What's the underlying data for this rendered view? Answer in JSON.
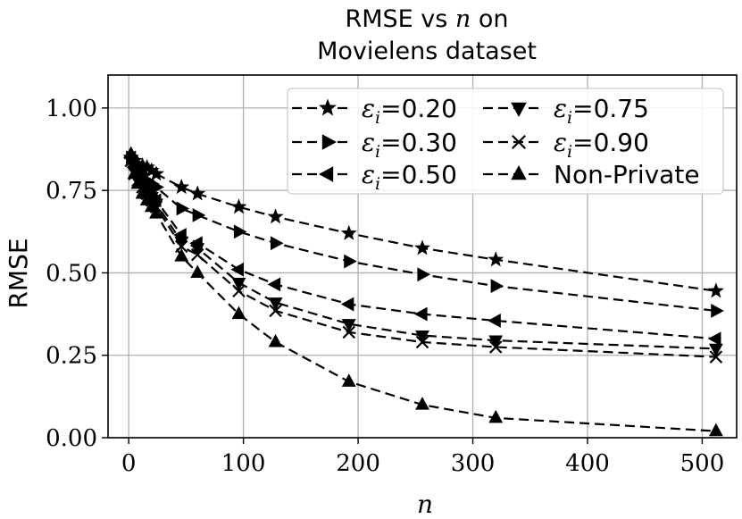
{
  "chart_data": {
    "type": "line",
    "title_line1_prefix": "RMSE vs ",
    "title_var": "n",
    "title_line1_suffix": " on",
    "title_line2": "Movielens dataset",
    "xlabel": "n",
    "ylabel": "RMSE",
    "xlim": [
      -18,
      530
    ],
    "ylim": [
      0.0,
      1.1
    ],
    "xticks": [
      0,
      100,
      200,
      300,
      400,
      500
    ],
    "yticks": [
      0.0,
      0.25,
      0.5,
      0.75,
      1.0
    ],
    "ytick_labels": [
      "0.00",
      "0.25",
      "0.50",
      "0.75",
      "1.00"
    ],
    "grid": true,
    "legend_position": "top-right",
    "x": [
      2,
      5,
      8,
      12,
      16,
      20,
      24,
      46,
      60,
      96,
      128,
      192,
      256,
      320,
      512
    ],
    "series": [
      {
        "name": "ε_i=0.20",
        "legend_sym": "ε",
        "legend_sub": "i",
        "legend_val": "=0.20",
        "marker": "star",
        "values": [
          0.85,
          0.84,
          0.83,
          0.825,
          0.82,
          0.81,
          0.8,
          0.76,
          0.74,
          0.7,
          0.67,
          0.62,
          0.575,
          0.54,
          0.445
        ]
      },
      {
        "name": "ε_i=0.30",
        "legend_sym": "ε",
        "legend_sub": "i",
        "legend_val": "=0.30",
        "marker": "triangle-right",
        "values": [
          0.85,
          0.83,
          0.81,
          0.8,
          0.78,
          0.77,
          0.76,
          0.695,
          0.675,
          0.625,
          0.59,
          0.535,
          0.495,
          0.46,
          0.385
        ]
      },
      {
        "name": "ε_i=0.50",
        "legend_sym": "ε",
        "legend_sub": "i",
        "legend_val": "=0.50",
        "marker": "triangle-left",
        "values": [
          0.85,
          0.82,
          0.79,
          0.77,
          0.75,
          0.74,
          0.72,
          0.615,
          0.59,
          0.51,
          0.465,
          0.405,
          0.375,
          0.355,
          0.3
        ]
      },
      {
        "name": "ε_i=0.75",
        "legend_sym": "ε",
        "legend_sub": "i",
        "legend_val": "=0.75",
        "marker": "triangle-down",
        "values": [
          0.84,
          0.81,
          0.78,
          0.76,
          0.74,
          0.73,
          0.71,
          0.595,
          0.575,
          0.47,
          0.41,
          0.345,
          0.31,
          0.295,
          0.27
        ]
      },
      {
        "name": "ε_i=0.90",
        "legend_sym": "ε",
        "legend_sub": "i",
        "legend_val": "=0.90",
        "marker": "x",
        "values": [
          0.84,
          0.8,
          0.78,
          0.76,
          0.74,
          0.72,
          0.7,
          0.58,
          0.555,
          0.445,
          0.385,
          0.32,
          0.29,
          0.275,
          0.245
        ]
      },
      {
        "name": "Non-Private",
        "legend_sym": "",
        "legend_sub": "",
        "legend_val": "Non-Private",
        "marker": "triangle-up",
        "values": [
          0.86,
          0.8,
          0.77,
          0.74,
          0.72,
          0.7,
          0.68,
          0.55,
          0.5,
          0.375,
          0.29,
          0.17,
          0.1,
          0.06,
          0.02
        ]
      }
    ]
  }
}
